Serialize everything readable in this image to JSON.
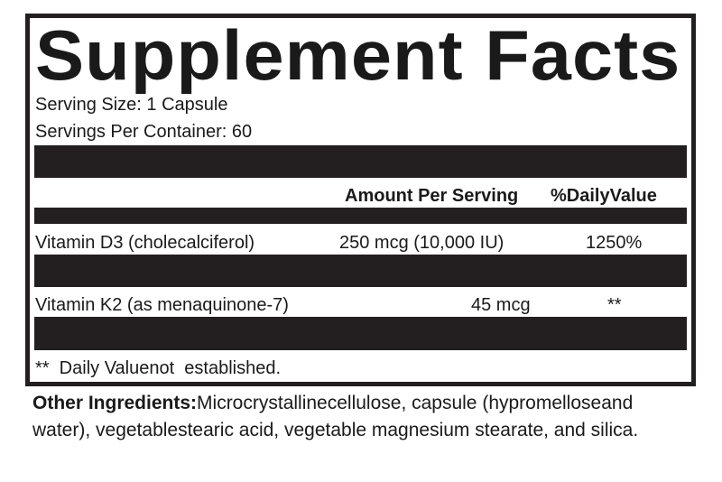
{
  "title": "Supplement Facts",
  "serving_size": "Serving Size: 1 Capsule",
  "servings_per_container": "Servings Per Container: 60",
  "header": {
    "amount": "Amount Per Serving",
    "dv": "%DailyValue"
  },
  "rows": [
    {
      "name": "Vitamin D3 (cholecalciferol)",
      "amount": "250 mcg (10,000 IU)",
      "dv": "1250%"
    },
    {
      "name": "Vitamin K2 (as menaquinone-7)",
      "amount": "45 mcg",
      "dv": "**"
    }
  ],
  "footnote": "**  Daily Valuenot  established.",
  "other_ingredients": {
    "label": "Other Ingredients:",
    "text": "Microcrystallinecellulose,  capsule (hypromelloseand  water), vegetablestearic acid, vegetable magnesium stearate, and silica."
  },
  "colors": {
    "ink": "#231f20",
    "background": "#ffffff"
  }
}
